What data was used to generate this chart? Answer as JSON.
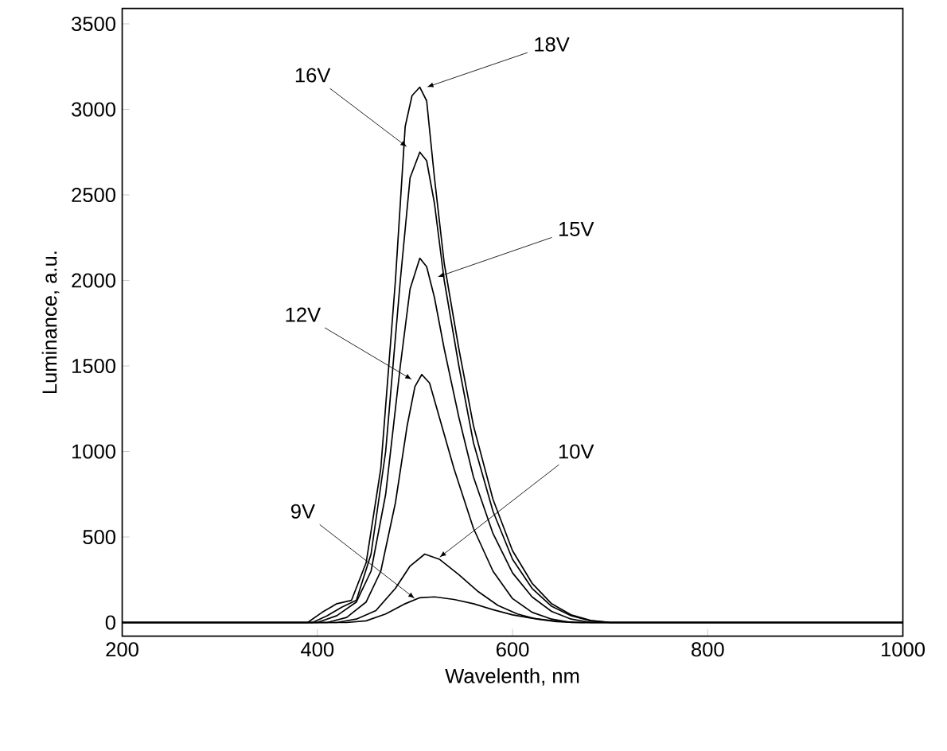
{
  "chart_data": {
    "type": "line",
    "xlabel": "Wavelenth, nm",
    "ylabel": "Luminance, a.u.",
    "xlim": [
      200,
      1000
    ],
    "ylim": [
      -80,
      3590
    ],
    "xticks": [
      200,
      400,
      600,
      800,
      1000
    ],
    "yticks": [
      0,
      500,
      1000,
      1500,
      2000,
      2500,
      3000,
      3500
    ],
    "grid": false,
    "legend": false,
    "marker": "none",
    "line_style": "solid",
    "series": [
      {
        "name": "18V",
        "color": "#000000",
        "x": [
          200,
          390,
          405,
          420,
          435,
          450,
          465,
          480,
          490,
          497,
          505,
          512,
          520,
          530,
          545,
          560,
          580,
          600,
          620,
          640,
          660,
          680,
          700,
          1000
        ],
        "values": [
          0,
          0,
          60,
          110,
          130,
          350,
          900,
          2000,
          2900,
          3080,
          3130,
          3050,
          2600,
          2100,
          1600,
          1150,
          720,
          420,
          230,
          110,
          45,
          12,
          0,
          0
        ]
      },
      {
        "name": "16V",
        "color": "#000000",
        "x": [
          200,
          395,
          410,
          425,
          440,
          455,
          470,
          485,
          495,
          505,
          512,
          520,
          530,
          545,
          560,
          580,
          600,
          620,
          640,
          660,
          680,
          700,
          1000
        ],
        "values": [
          0,
          0,
          40,
          90,
          130,
          400,
          1000,
          2000,
          2600,
          2750,
          2700,
          2450,
          2000,
          1500,
          1050,
          650,
          370,
          200,
          95,
          40,
          10,
          0,
          0
        ]
      },
      {
        "name": "15V",
        "color": "#000000",
        "x": [
          200,
          400,
          420,
          440,
          455,
          470,
          485,
          495,
          505,
          512,
          520,
          530,
          545,
          560,
          580,
          600,
          620,
          640,
          660,
          680,
          1000
        ],
        "values": [
          0,
          0,
          40,
          120,
          300,
          750,
          1500,
          1950,
          2130,
          2080,
          1900,
          1600,
          1200,
          850,
          520,
          290,
          150,
          65,
          20,
          0,
          0
        ]
      },
      {
        "name": "12V",
        "color": "#000000",
        "x": [
          200,
          410,
          430,
          450,
          465,
          480,
          492,
          500,
          507,
          515,
          525,
          540,
          560,
          580,
          600,
          620,
          640,
          660,
          1000
        ],
        "values": [
          0,
          0,
          30,
          120,
          300,
          700,
          1150,
          1380,
          1450,
          1400,
          1200,
          900,
          550,
          300,
          140,
          60,
          20,
          0,
          0
        ]
      },
      {
        "name": "10V",
        "color": "#000000",
        "x": [
          200,
          420,
          440,
          460,
          480,
          495,
          510,
          525,
          545,
          565,
          585,
          605,
          625,
          645,
          665,
          1000
        ],
        "values": [
          0,
          0,
          20,
          70,
          200,
          330,
          400,
          370,
          280,
          180,
          100,
          50,
          20,
          5,
          0,
          0
        ]
      },
      {
        "name": "9V",
        "color": "#000000",
        "x": [
          200,
          430,
          450,
          470,
          490,
          505,
          520,
          540,
          560,
          580,
          600,
          620,
          645,
          670,
          1000
        ],
        "values": [
          0,
          0,
          10,
          50,
          110,
          145,
          150,
          135,
          110,
          75,
          45,
          25,
          8,
          0,
          0
        ]
      }
    ]
  }
}
